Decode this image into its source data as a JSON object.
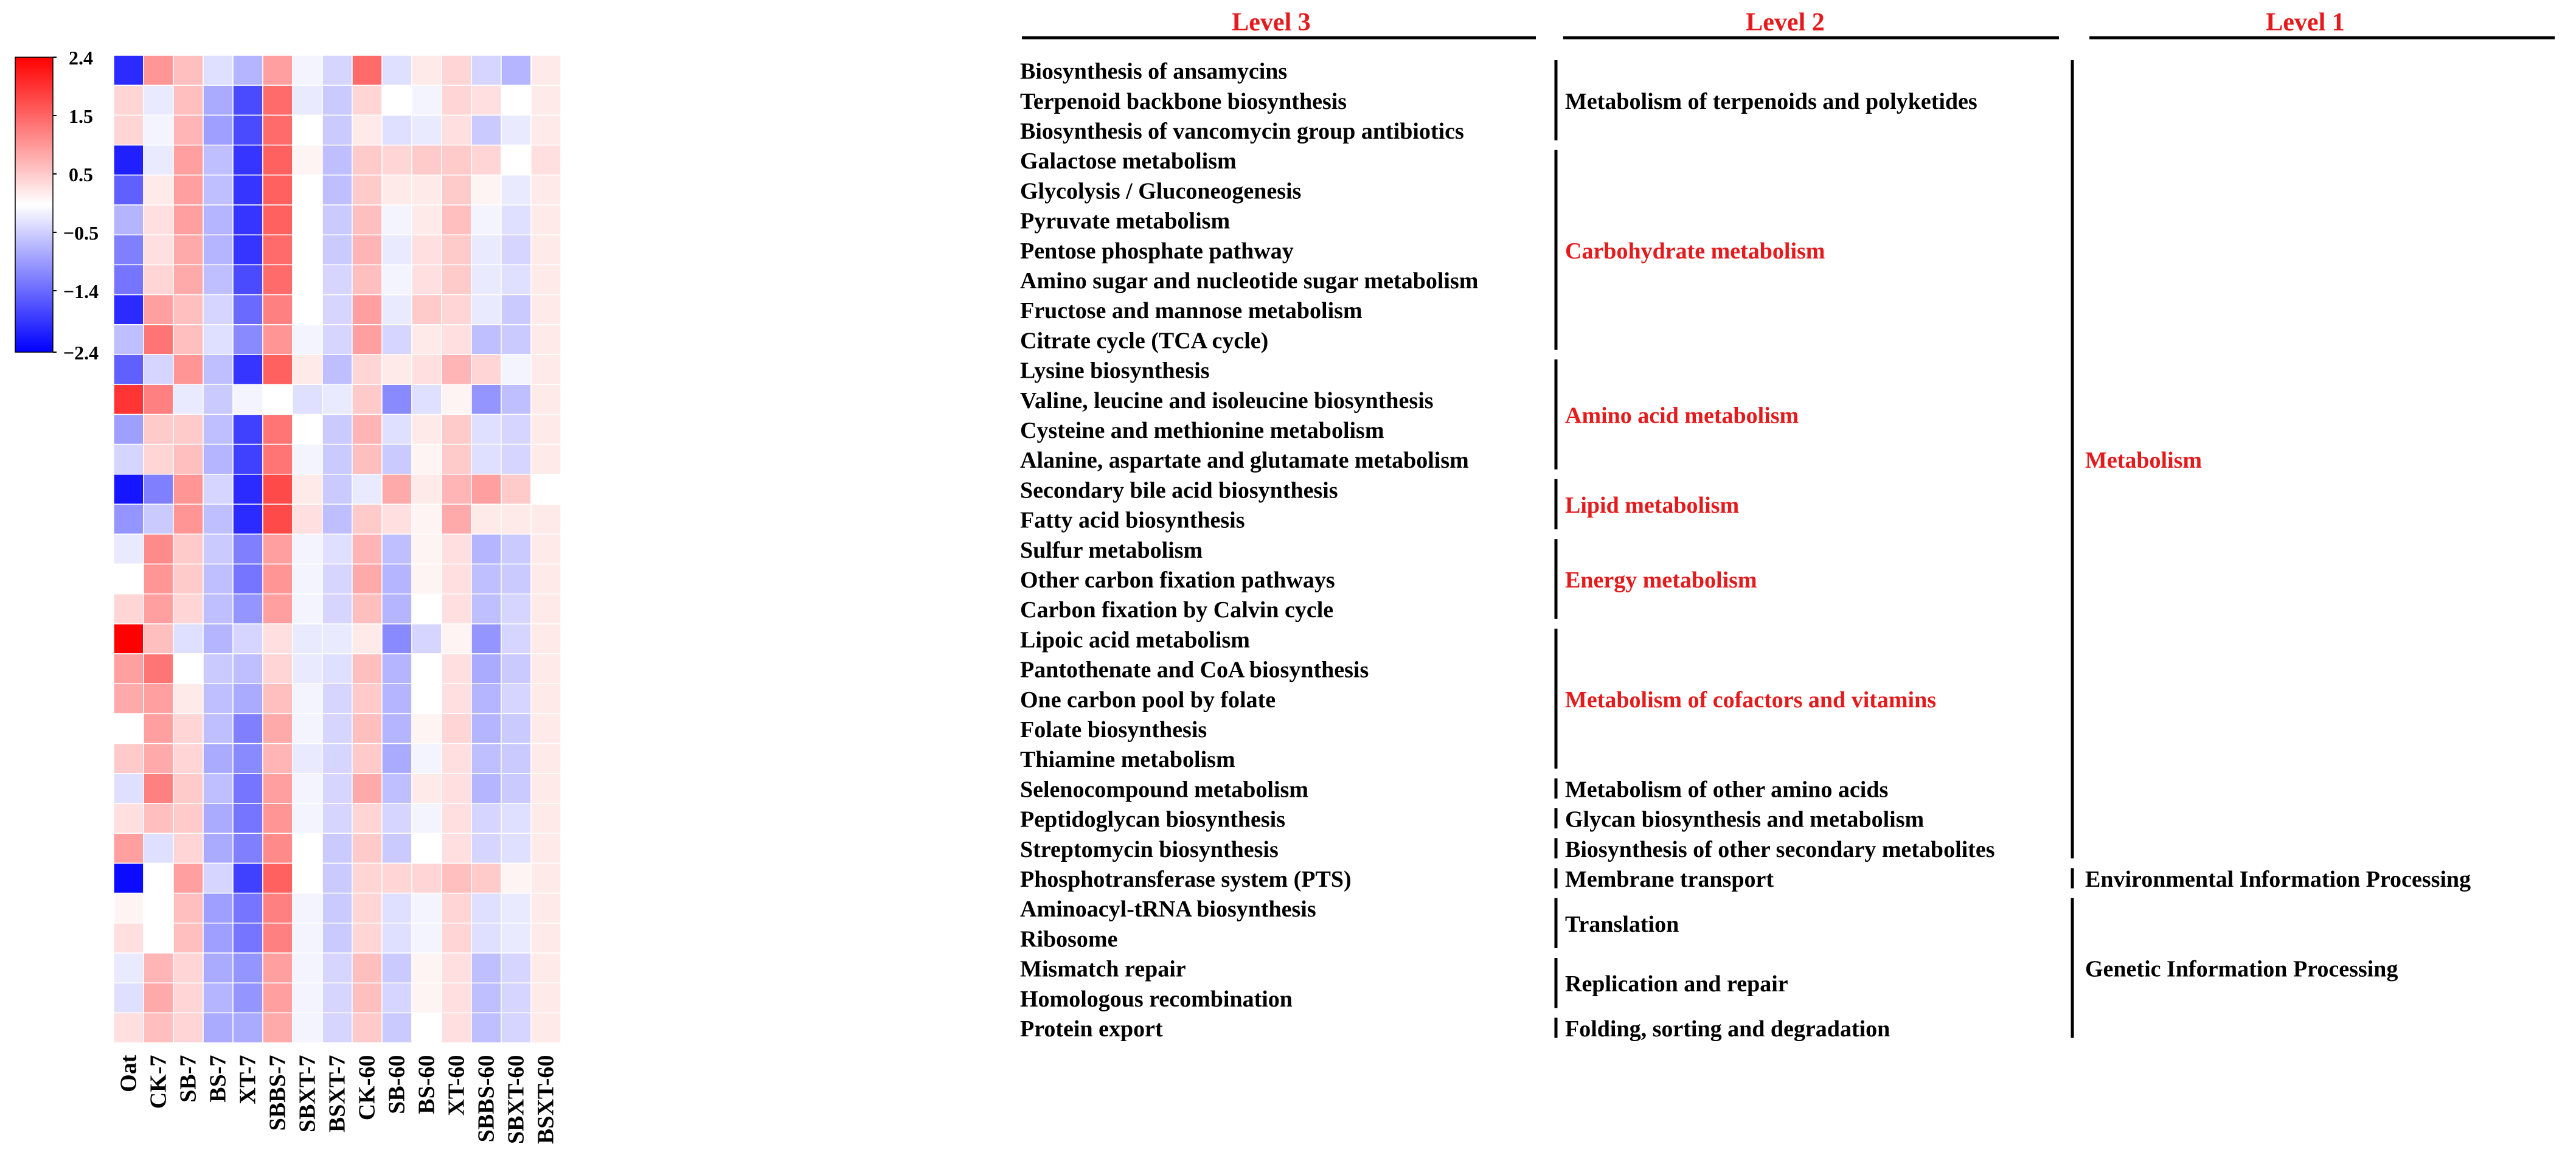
{
  "chart_data": {
    "type": "heatmap",
    "colorbar": {
      "ticks": [
        "2.4",
        "1.5",
        "0.5",
        "−0.5",
        "−1.4",
        "−2.4"
      ],
      "tick_values": [
        2.4,
        1.45,
        0.5,
        -0.45,
        -1.4,
        -2.4
      ],
      "min": -2.4,
      "max": 2.4,
      "colors": {
        "low": "#0000ff",
        "mid": "#ffffff",
        "high": "#ff0000"
      }
    },
    "columns": [
      "Oat",
      "CK-7",
      "SB-7",
      "BS-7",
      "XT-7",
      "SBBS-7",
      "SBXT-7",
      "BSXT-7",
      "CK-60",
      "SB-60",
      "BS-60",
      "XT-60",
      "SBBS-60",
      "SBXT-60",
      "BSXT-60"
    ],
    "rows": [
      "Biosynthesis of ansamycins",
      "Terpenoid backbone biosynthesis",
      "Biosynthesis of vancomycin group antibiotics",
      "Galactose metabolism",
      "Glycolysis / Gluconeogenesis",
      "Pyruvate metabolism",
      "Pentose phosphate pathway",
      "Amino sugar and nucleotide sugar metabolism",
      "Fructose and mannose metabolism",
      "Citrate cycle (TCA cycle)",
      "Lysine biosynthesis",
      "Valine, leucine and isoleucine biosynthesis",
      "Cysteine and methionine metabolism",
      "Alanine, aspartate and glutamate metabolism",
      "Secondary bile acid biosynthesis",
      "Fatty acid biosynthesis",
      "Sulfur metabolism",
      "Other carbon fixation pathways",
      "Carbon fixation by Calvin cycle",
      "Lipoic acid metabolism",
      "Pantothenate and CoA biosynthesis",
      "One carbon pool by folate",
      "Folate biosynthesis",
      "Thiamine metabolism",
      "Selenocompound metabolism",
      "Peptidoglycan biosynthesis",
      "Streptomycin biosynthesis",
      "Phosphotransferase system (PTS)",
      "Aminoacyl-tRNA biosynthesis",
      "Ribosome",
      "Mismatch repair",
      "Homologous recombination",
      "Protein export"
    ],
    "values": [
      [
        -2.0,
        1.0,
        0.6,
        -0.3,
        -0.7,
        0.9,
        -0.1,
        -0.4,
        1.4,
        -0.3,
        0.2,
        0.4,
        -0.4,
        -0.7,
        0.2
      ],
      [
        0.4,
        -0.2,
        0.6,
        -0.8,
        -1.7,
        1.4,
        -0.2,
        -0.5,
        0.4,
        0.0,
        -0.1,
        0.4,
        0.3,
        0.0,
        0.2
      ],
      [
        0.4,
        -0.1,
        0.7,
        -0.9,
        -1.7,
        1.4,
        0.0,
        -0.5,
        0.2,
        -0.3,
        -0.2,
        0.3,
        -0.5,
        -0.2,
        0.2
      ],
      [
        -2.1,
        -0.2,
        0.9,
        -0.6,
        -1.9,
        1.5,
        0.1,
        -0.6,
        0.5,
        0.4,
        0.5,
        0.5,
        0.4,
        0.0,
        0.3
      ],
      [
        -1.5,
        0.2,
        0.9,
        -0.6,
        -1.9,
        1.5,
        0.0,
        -0.6,
        0.5,
        0.2,
        0.2,
        0.5,
        0.1,
        -0.2,
        0.2
      ],
      [
        -0.7,
        0.3,
        0.9,
        -0.7,
        -1.9,
        1.5,
        0.0,
        -0.5,
        0.6,
        -0.1,
        0.2,
        0.6,
        -0.1,
        -0.3,
        0.2
      ],
      [
        -1.2,
        0.3,
        0.8,
        -0.7,
        -1.9,
        1.4,
        0.0,
        -0.5,
        0.7,
        -0.2,
        0.3,
        0.5,
        -0.2,
        -0.4,
        0.2
      ],
      [
        -1.3,
        0.4,
        0.8,
        -0.6,
        -1.7,
        1.4,
        0.0,
        -0.4,
        0.6,
        -0.1,
        0.3,
        0.5,
        -0.2,
        -0.3,
        0.2
      ],
      [
        -2.0,
        0.9,
        0.6,
        -0.4,
        -1.4,
        1.2,
        0.0,
        -0.4,
        0.9,
        -0.2,
        0.5,
        0.4,
        -0.2,
        -0.5,
        0.2
      ],
      [
        -0.6,
        1.3,
        0.6,
        -0.3,
        -1.1,
        1.0,
        -0.1,
        -0.4,
        0.9,
        -0.4,
        0.2,
        0.3,
        -0.6,
        -0.5,
        0.2
      ],
      [
        -1.5,
        -0.4,
        1.0,
        -0.6,
        -1.9,
        1.5,
        0.2,
        -0.6,
        0.4,
        0.2,
        0.3,
        0.7,
        0.4,
        -0.1,
        0.2
      ],
      [
        1.9,
        1.2,
        -0.2,
        -0.5,
        -0.1,
        0.0,
        -0.3,
        -0.2,
        0.5,
        -1.1,
        -0.3,
        0.1,
        -1.0,
        -0.6,
        0.2
      ],
      [
        -0.9,
        0.5,
        0.5,
        -0.6,
        -1.8,
        1.3,
        0.0,
        -0.5,
        0.7,
        -0.3,
        0.2,
        0.5,
        -0.3,
        -0.4,
        0.2
      ],
      [
        -0.4,
        0.4,
        0.6,
        -0.7,
        -1.8,
        1.3,
        -0.1,
        -0.5,
        0.6,
        -0.5,
        0.1,
        0.5,
        -0.3,
        -0.4,
        0.2
      ],
      [
        -2.2,
        -1.2,
        1.0,
        -0.4,
        -2.0,
        1.7,
        0.2,
        -0.5,
        -0.2,
        0.8,
        0.2,
        0.7,
        0.9,
        0.5,
        0.0
      ],
      [
        -1.0,
        -0.5,
        1.0,
        -0.6,
        -2.0,
        1.7,
        0.3,
        -0.6,
        0.5,
        0.3,
        0.1,
        0.8,
        0.2,
        0.2,
        0.2
      ],
      [
        -0.2,
        1.1,
        0.5,
        -0.5,
        -1.2,
        0.9,
        -0.1,
        -0.3,
        0.7,
        -0.6,
        0.1,
        0.3,
        -0.7,
        -0.5,
        0.2
      ],
      [
        0.0,
        1.0,
        0.5,
        -0.6,
        -1.3,
        1.0,
        -0.1,
        -0.4,
        0.8,
        -0.7,
        0.1,
        0.3,
        -0.6,
        -0.5,
        0.2
      ],
      [
        0.4,
        0.9,
        0.4,
        -0.6,
        -1.0,
        0.9,
        -0.1,
        -0.4,
        0.6,
        -0.7,
        0.0,
        0.3,
        -0.6,
        -0.4,
        0.2
      ],
      [
        2.4,
        0.6,
        -0.3,
        -0.7,
        -0.4,
        0.3,
        -0.2,
        -0.2,
        0.2,
        -1.1,
        -0.4,
        0.1,
        -1.0,
        -0.4,
        0.2
      ],
      [
        0.9,
        1.3,
        0.0,
        -0.5,
        -0.6,
        0.4,
        -0.2,
        -0.3,
        0.6,
        -0.7,
        0.0,
        0.3,
        -0.8,
        -0.5,
        0.2
      ],
      [
        0.8,
        0.9,
        0.2,
        -0.6,
        -0.8,
        0.6,
        -0.1,
        -0.4,
        0.5,
        -0.7,
        0.0,
        0.3,
        -0.7,
        -0.4,
        0.2
      ],
      [
        0.0,
        0.9,
        0.4,
        -0.6,
        -1.2,
        0.8,
        -0.1,
        -0.4,
        0.6,
        -0.7,
        0.1,
        0.4,
        -0.7,
        -0.5,
        0.2
      ],
      [
        0.5,
        0.8,
        0.4,
        -0.8,
        -1.1,
        0.7,
        -0.2,
        -0.4,
        0.5,
        -0.8,
        -0.1,
        0.3,
        -0.6,
        -0.5,
        0.2
      ],
      [
        -0.3,
        1.2,
        0.5,
        -0.6,
        -1.3,
        0.9,
        -0.1,
        -0.4,
        0.8,
        -0.6,
        0.2,
        0.3,
        -0.7,
        -0.5,
        0.2
      ],
      [
        0.3,
        0.6,
        0.5,
        -0.8,
        -1.3,
        1.0,
        -0.1,
        -0.4,
        0.4,
        -0.4,
        -0.1,
        0.3,
        -0.4,
        -0.3,
        0.2
      ],
      [
        0.9,
        -0.3,
        0.4,
        -0.8,
        -1.2,
        1.1,
        0.0,
        -0.5,
        0.5,
        -0.5,
        0.0,
        0.3,
        -0.4,
        -0.3,
        0.2
      ],
      [
        -2.3,
        0.0,
        0.9,
        -0.4,
        -1.8,
        1.5,
        0.0,
        -0.5,
        0.4,
        0.4,
        0.4,
        0.6,
        0.5,
        0.1,
        0.2
      ],
      [
        0.1,
        0.0,
        0.6,
        -0.9,
        -1.3,
        1.2,
        -0.1,
        -0.5,
        0.4,
        -0.3,
        -0.1,
        0.4,
        -0.3,
        -0.2,
        0.2
      ],
      [
        0.3,
        0.0,
        0.6,
        -0.9,
        -1.3,
        1.2,
        -0.1,
        -0.5,
        0.4,
        -0.3,
        -0.1,
        0.4,
        -0.3,
        -0.2,
        0.2
      ],
      [
        -0.2,
        0.7,
        0.4,
        -0.8,
        -1.0,
        0.9,
        -0.1,
        -0.4,
        0.6,
        -0.5,
        0.1,
        0.3,
        -0.6,
        -0.4,
        0.2
      ],
      [
        -0.3,
        0.8,
        0.4,
        -0.7,
        -1.0,
        0.9,
        -0.1,
        -0.4,
        0.6,
        -0.4,
        0.1,
        0.3,
        -0.6,
        -0.4,
        0.2
      ],
      [
        0.3,
        0.6,
        0.4,
        -0.8,
        -0.8,
        0.8,
        -0.1,
        -0.4,
        0.5,
        -0.5,
        0.0,
        0.3,
        -0.6,
        -0.4,
        0.2
      ]
    ]
  },
  "headers": {
    "level3": "Level 3",
    "level2": "Level 2",
    "level1": "Level 1"
  },
  "level2_groups": [
    {
      "label": "Metabolism of terpenoids and polyketides",
      "rows": [
        0,
        2
      ],
      "color": "#000000"
    },
    {
      "label": "Carbohydrate metabolism",
      "rows": [
        3,
        9
      ],
      "color": "#e41a1c"
    },
    {
      "label": "Amino acid metabolism",
      "rows": [
        10,
        13
      ],
      "color": "#e41a1c"
    },
    {
      "label": "Lipid metabolism",
      "rows": [
        14,
        15
      ],
      "color": "#e41a1c"
    },
    {
      "label": "Energy metabolism",
      "rows": [
        16,
        18
      ],
      "color": "#e41a1c"
    },
    {
      "label": "Metabolism of cofactors and vitamins",
      "rows": [
        19,
        23
      ],
      "color": "#e41a1c"
    },
    {
      "label": "Metabolism of other amino acids",
      "rows": [
        24,
        24
      ],
      "color": "#000000"
    },
    {
      "label": "Glycan biosynthesis and metabolism",
      "rows": [
        25,
        25
      ],
      "color": "#000000"
    },
    {
      "label": "Biosynthesis of other secondary metabolites",
      "rows": [
        26,
        26
      ],
      "color": "#000000"
    },
    {
      "label": "Membrane transport",
      "rows": [
        27,
        27
      ],
      "color": "#000000"
    },
    {
      "label": "Translation",
      "rows": [
        28,
        29
      ],
      "color": "#000000"
    },
    {
      "label": "Replication and repair",
      "rows": [
        30,
        31
      ],
      "color": "#000000"
    },
    {
      "label": "Folding, sorting and degradation",
      "rows": [
        32,
        32
      ],
      "color": "#000000"
    }
  ],
  "level1_groups": [
    {
      "label": "Metabolism",
      "rows": [
        0,
        26
      ],
      "color": "#e41a1c"
    },
    {
      "label": "Environmental Information Processing",
      "rows": [
        27,
        27
      ],
      "color": "#000000"
    },
    {
      "label": "Genetic Information Processing",
      "rows": [
        28,
        32
      ],
      "color": "#000000"
    }
  ],
  "colors": {
    "header": "#e41a1c",
    "text": "#000000",
    "accent_red": "#e41a1c"
  }
}
